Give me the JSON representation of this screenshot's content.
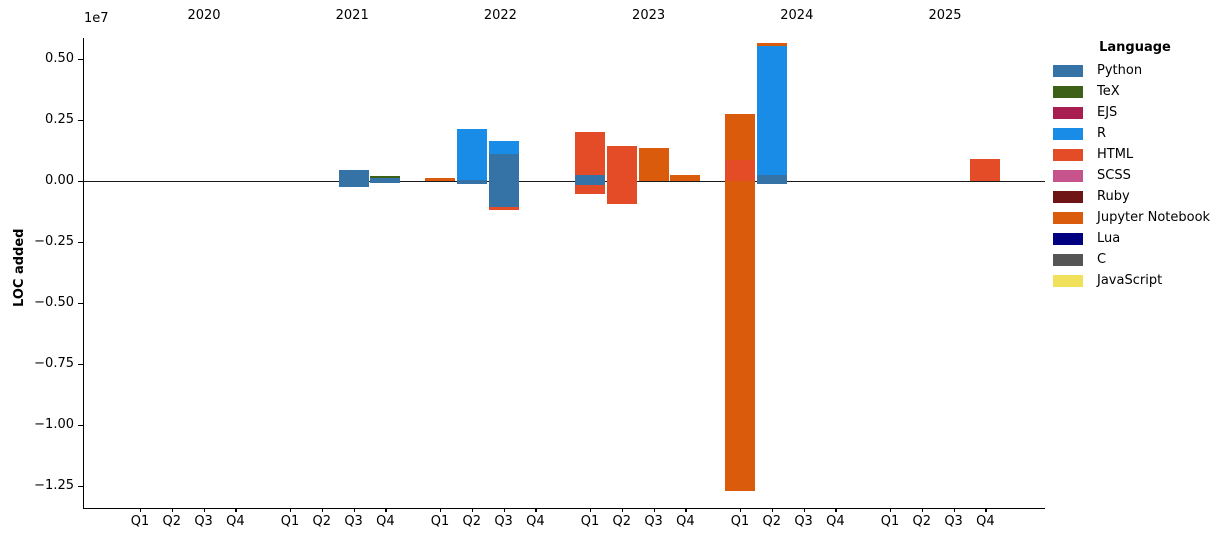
{
  "figure": {
    "ylabel": "LOC added",
    "offset_text": "1e7",
    "background_color": "#ffffff",
    "axis_color": "#000000"
  },
  "legend": {
    "title": "Language",
    "entries": [
      {
        "name": "Python",
        "color": "#3572A5"
      },
      {
        "name": "TeX",
        "color": "#3D6117"
      },
      {
        "name": "EJS",
        "color": "#a91e50"
      },
      {
        "name": "R",
        "color": "#198CE7"
      },
      {
        "name": "HTML",
        "color": "#e34c26"
      },
      {
        "name": "SCSS",
        "color": "#c6538c"
      },
      {
        "name": "Ruby",
        "color": "#701516"
      },
      {
        "name": "Jupyter Notebook",
        "color": "#DA5B0B"
      },
      {
        "name": "Lua",
        "color": "#000080"
      },
      {
        "name": "C",
        "color": "#555555"
      },
      {
        "name": "JavaScript",
        "color": "#f1e05a"
      }
    ]
  },
  "chart_data": {
    "type": "bar",
    "stacked": true,
    "title": "",
    "xlabel": "",
    "ylabel": "LOC added",
    "y_multiplier_label": "1e7",
    "unit": "1e7 LOC (values below are in units of 10,000,000 lines)",
    "grid": false,
    "legend_position": "right",
    "ylim": [
      -1.34,
      0.59
    ],
    "ytick_values": [
      0.5,
      0.25,
      0.0,
      -0.25,
      -0.5,
      -0.75,
      -1.0,
      -1.25
    ],
    "ytick_labels": [
      "0.50",
      "0.25",
      "0.00",
      "−0.25",
      "−0.50",
      "−0.75",
      "−1.00",
      "−1.25"
    ],
    "years": [
      "2020",
      "2021",
      "2022",
      "2023",
      "2024",
      "2025"
    ],
    "quarters": [
      "Q1",
      "Q2",
      "Q3",
      "Q4"
    ],
    "bars": [
      {
        "year": "2021",
        "quarter": "Q3",
        "segments": [
          {
            "language": "Python",
            "value": 0.046
          },
          {
            "language": "Python",
            "value": -0.023
          }
        ]
      },
      {
        "year": "2021",
        "quarter": "Q4",
        "segments": [
          {
            "language": "Python",
            "value": 0.012
          },
          {
            "language": "TeX",
            "value": 0.01
          },
          {
            "language": "Python",
            "value": -0.01
          }
        ]
      },
      {
        "year": "2022",
        "quarter": "Q1",
        "segments": [
          {
            "language": "Jupyter Notebook",
            "value": 0.012
          }
        ]
      },
      {
        "year": "2022",
        "quarter": "Q2",
        "segments": [
          {
            "language": "Python",
            "value": 0.005
          },
          {
            "language": "R",
            "value": 0.21
          },
          {
            "language": "Python",
            "value": -0.013
          }
        ]
      },
      {
        "year": "2022",
        "quarter": "Q3",
        "segments": [
          {
            "language": "Python",
            "value": 0.111
          },
          {
            "language": "R",
            "value": 0.053
          },
          {
            "language": "Python",
            "value": -0.105
          },
          {
            "language": "HTML",
            "value": -0.012
          }
        ]
      },
      {
        "year": "2023",
        "quarter": "Q1",
        "segments": [
          {
            "language": "Python",
            "value": 0.026
          },
          {
            "language": "HTML",
            "value": 0.176
          },
          {
            "language": "Python",
            "value": -0.016
          },
          {
            "language": "HTML",
            "value": -0.037
          }
        ]
      },
      {
        "year": "2023",
        "quarter": "Q2",
        "segments": [
          {
            "language": "HTML",
            "value": 0.142
          },
          {
            "language": "HTML",
            "value": -0.095
          }
        ]
      },
      {
        "year": "2023",
        "quarter": "Q3",
        "segments": [
          {
            "language": "Jupyter Notebook",
            "value": 0.134
          }
        ]
      },
      {
        "year": "2023",
        "quarter": "Q4",
        "segments": [
          {
            "language": "Jupyter Notebook",
            "value": 0.025
          }
        ]
      },
      {
        "year": "2024",
        "quarter": "Q1",
        "segments": [
          {
            "language": "HTML",
            "value": 0.086
          },
          {
            "language": "Jupyter Notebook",
            "value": 0.187
          },
          {
            "language": "Jupyter Notebook",
            "value": -1.27
          }
        ]
      },
      {
        "year": "2024",
        "quarter": "Q2",
        "segments": [
          {
            "language": "Python",
            "value": 0.025
          },
          {
            "language": "R",
            "value": 0.529
          },
          {
            "language": "Jupyter Notebook",
            "value": 0.011
          },
          {
            "language": "Python",
            "value": -0.012
          }
        ]
      },
      {
        "year": "2025",
        "quarter": "Q4",
        "segments": [
          {
            "language": "HTML",
            "value": 0.089
          }
        ]
      }
    ]
  }
}
